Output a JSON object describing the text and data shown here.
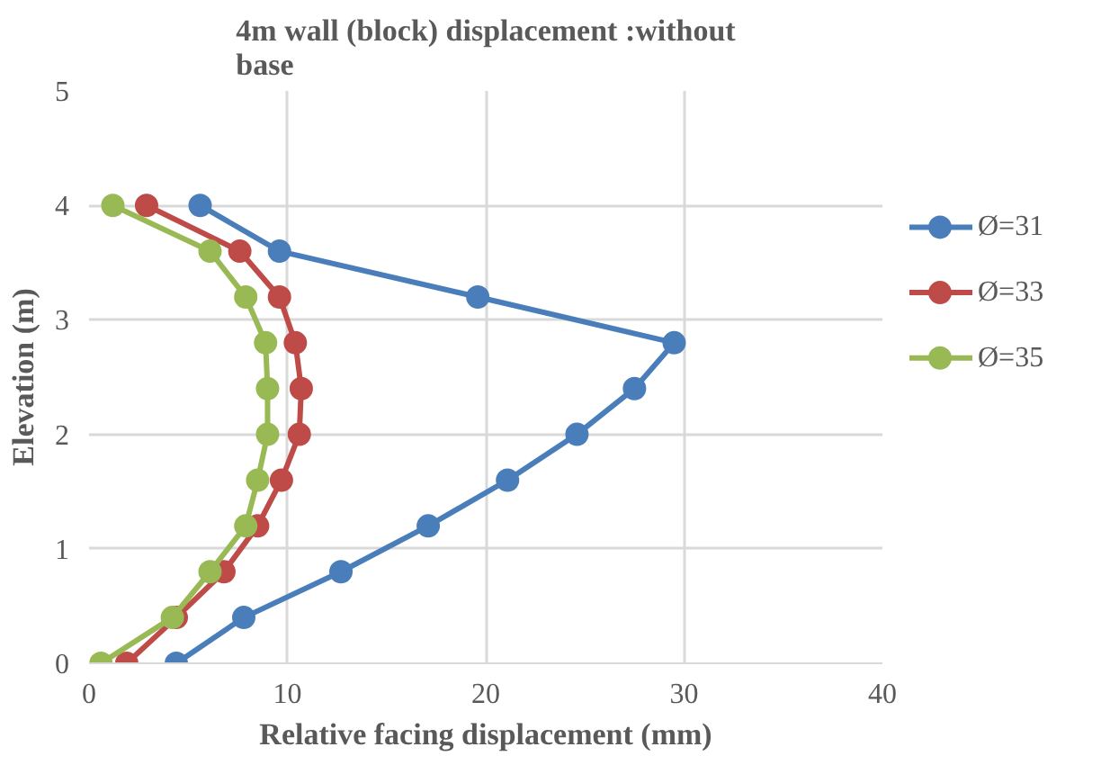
{
  "chart_data": {
    "type": "line",
    "title": "4m wall (block) displacement :without base",
    "xlabel": "Relative facing displacement (mm)",
    "ylabel": "Elevation (m)",
    "xlim": [
      0,
      40
    ],
    "xticks": [
      0,
      10,
      20,
      30,
      40
    ],
    "ylim": [
      0,
      5
    ],
    "yticks": [
      0,
      1,
      2,
      3,
      4,
      5
    ],
    "grid": true,
    "legend": "right",
    "marker": "circle",
    "line_style": "solid",
    "series": [
      {
        "name": "Ø=31",
        "color": "#4a7ebb",
        "x": [
          4.4,
          7.8,
          12.7,
          17.1,
          21.1,
          24.6,
          27.5,
          29.5,
          19.6,
          9.6,
          5.6
        ],
        "values": [
          0,
          0.4,
          0.8,
          1.2,
          1.6,
          2.0,
          2.4,
          2.8,
          3.2,
          3.6,
          4.0
        ]
      },
      {
        "name": "Ø=33",
        "color": "#be4b48",
        "x": [
          1.9,
          4.4,
          6.8,
          8.5,
          9.7,
          10.6,
          10.7,
          10.4,
          9.6,
          7.6,
          2.9
        ],
        "values": [
          0,
          0.4,
          0.8,
          1.2,
          1.6,
          2.0,
          2.4,
          2.8,
          3.2,
          3.6,
          4.0
        ]
      },
      {
        "name": "Ø=35",
        "color": "#98b954",
        "x": [
          0.6,
          4.2,
          6.1,
          7.9,
          8.5,
          9.0,
          9.0,
          8.9,
          7.9,
          6.1,
          1.2
        ],
        "values": [
          0,
          0.4,
          0.8,
          1.2,
          1.6,
          2.0,
          2.4,
          2.8,
          3.2,
          3.6,
          4.0
        ]
      }
    ]
  }
}
